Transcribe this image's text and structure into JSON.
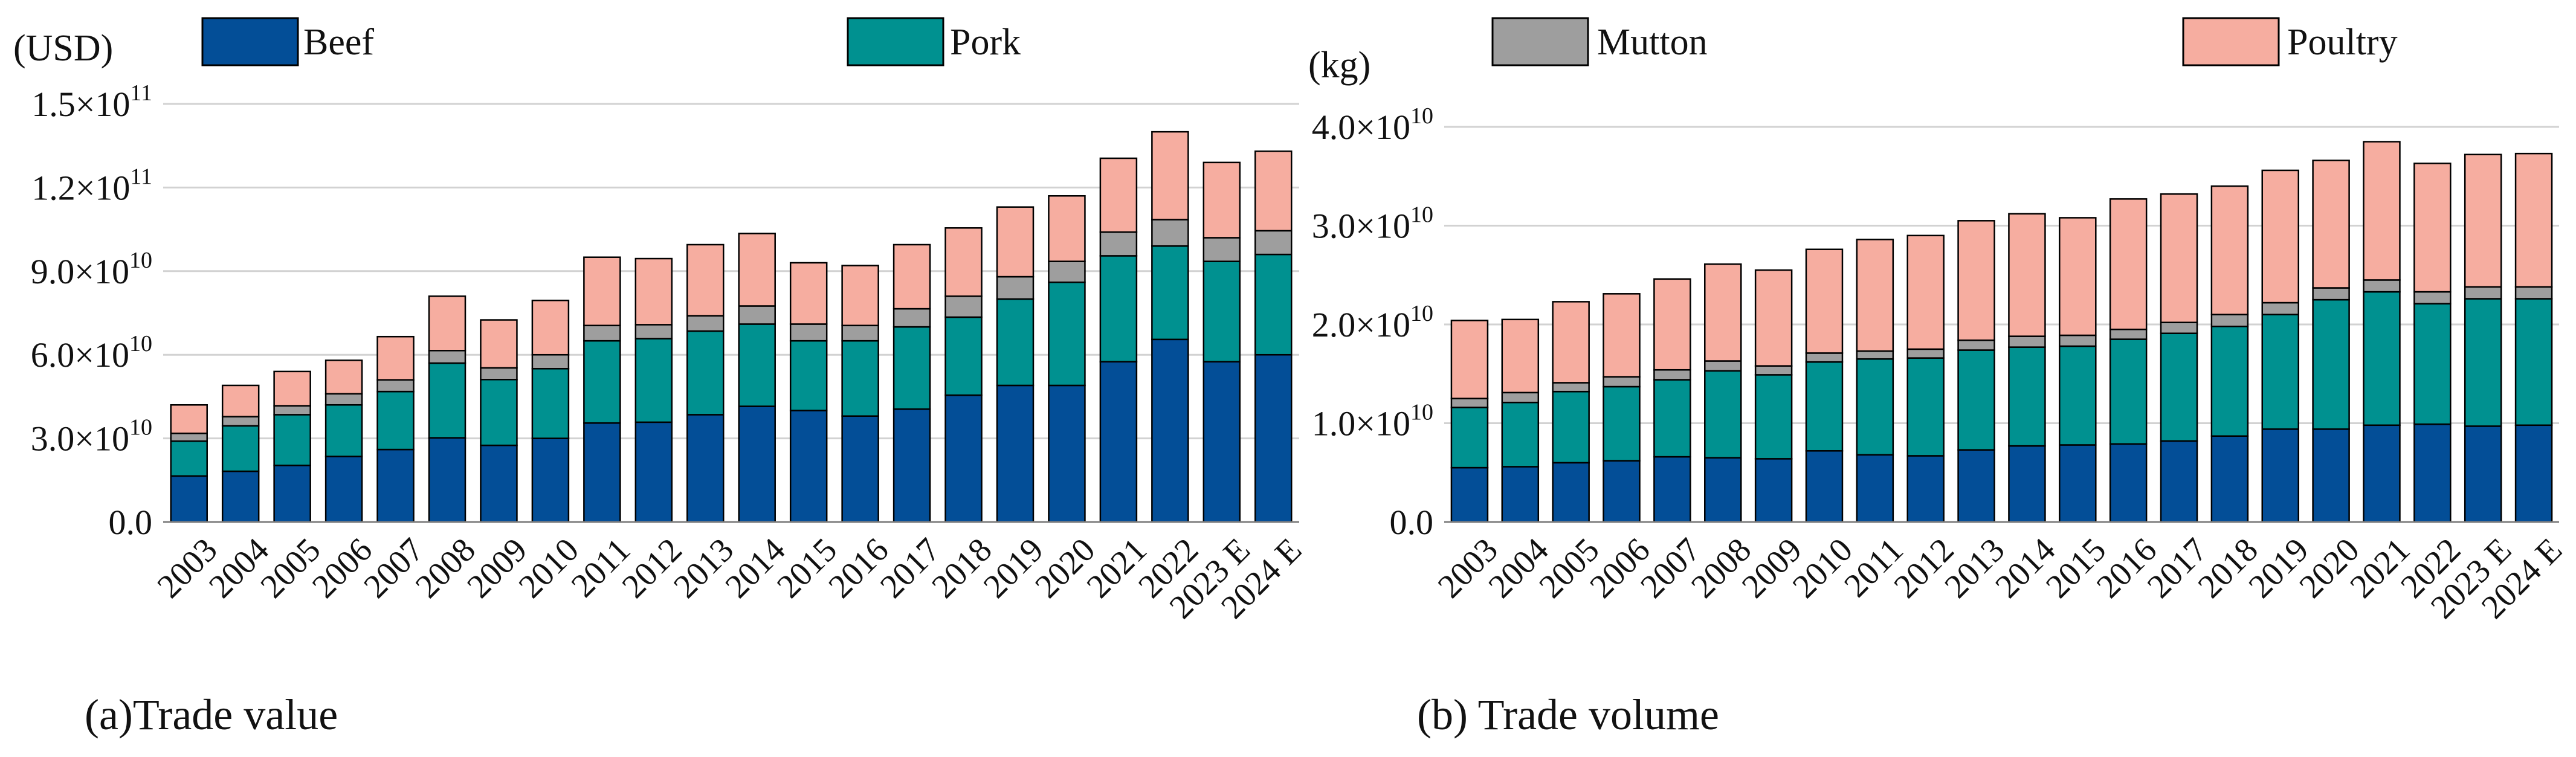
{
  "colors": {
    "beef": "#034e97",
    "pork": "#009190",
    "mutton": "#9e9e9e",
    "poultry": "#f6ada0",
    "grid": "#d2d2d2",
    "axis": "#7f7f7f",
    "text": "#111111"
  },
  "chart_data": [
    {
      "type": "bar",
      "stacked": true,
      "title": "(a)Trade value",
      "ylabel": "(USD)",
      "ylim": [
        0,
        150000000000
      ],
      "yticks": [
        {
          "label": "0.0"
        },
        {
          "label": "3.0×10",
          "exp": "10"
        },
        {
          "label": "6.0×10",
          "exp": "10"
        },
        {
          "label": "9.0×10",
          "exp": "10"
        },
        {
          "label": "1.2×10",
          "exp": "11"
        },
        {
          "label": "1.5×10",
          "exp": "11"
        }
      ],
      "grid": true,
      "legend": [
        "Beef",
        "Pork"
      ],
      "categories": [
        "2003",
        "2004",
        "2005",
        "2006",
        "2007",
        "2008",
        "2009",
        "2010",
        "2011",
        "2012",
        "2013",
        "2014",
        "2015",
        "2016",
        "2017",
        "2018",
        "2019",
        "2020",
        "2021",
        "2022",
        "2023 E",
        "2024 E"
      ],
      "series": [
        {
          "name": "Beef",
          "key": "beef",
          "values": [
            16500000000,
            18200000000,
            20300000000,
            23500000000,
            26000000000,
            30200000000,
            27500000000,
            30000000000,
            35500000000,
            35800000000,
            38500000000,
            41500000000,
            40000000000,
            38000000000,
            40500000000,
            45500000000,
            49000000000,
            49000000000,
            57500000000,
            65500000000,
            57500000000,
            60000000000
          ]
        },
        {
          "name": "Pork",
          "key": "pork",
          "values": [
            12500000000,
            16300000000,
            18200000000,
            18500000000,
            20800000000,
            26800000000,
            23600000000,
            25000000000,
            29500000000,
            30000000000,
            30000000000,
            29500000000,
            25000000000,
            27000000000,
            29500000000,
            28000000000,
            31000000000,
            37000000000,
            38000000000,
            33500000000,
            36000000000,
            36000000000
          ]
        },
        {
          "name": "Mutton",
          "key": "mutton",
          "values": [
            2800000000,
            3300000000,
            3200000000,
            4000000000,
            4200000000,
            4500000000,
            4200000000,
            5000000000,
            5500000000,
            5000000000,
            5500000000,
            6500000000,
            6000000000,
            5500000000,
            6500000000,
            7500000000,
            8000000000,
            7500000000,
            8500000000,
            9500000000,
            8500000000,
            8500000000
          ]
        },
        {
          "name": "Poultry",
          "key": "poultry",
          "values": [
            10200000000,
            11200000000,
            12300000000,
            12000000000,
            15500000000,
            19500000000,
            17200000000,
            19500000000,
            24500000000,
            23700000000,
            25500000000,
            26000000000,
            22000000000,
            21500000000,
            23000000000,
            24500000000,
            25000000000,
            23500000000,
            26500000000,
            31500000000,
            27000000000,
            28500000000
          ]
        }
      ]
    },
    {
      "type": "bar",
      "stacked": true,
      "title": "(b) Trade volume",
      "ylabel": "(kg)",
      "ylim": [
        0,
        40000000000
      ],
      "yticks": [
        {
          "label": "0.0"
        },
        {
          "label": "1.0×10",
          "exp": "10"
        },
        {
          "label": "2.0×10",
          "exp": "10"
        },
        {
          "label": "3.0×10",
          "exp": "10"
        },
        {
          "label": "4.0×10",
          "exp": "10"
        }
      ],
      "grid": true,
      "legend": [
        "Mutton",
        "Poultry"
      ],
      "categories": [
        "2003",
        "2004",
        "2005",
        "2006",
        "2007",
        "2008",
        "2009",
        "2010",
        "2011",
        "2012",
        "2013",
        "2014",
        "2015",
        "2016",
        "2017",
        "2018",
        "2019",
        "2020",
        "2021",
        "2022",
        "2023 E",
        "2024 E"
      ],
      "series": [
        {
          "name": "Beef",
          "key": "beef",
          "values": [
            5500000000,
            5600000000,
            6000000000,
            6200000000,
            6600000000,
            6500000000,
            6400000000,
            7200000000,
            6800000000,
            6700000000,
            7300000000,
            7700000000,
            7800000000,
            7900000000,
            8200000000,
            8700000000,
            9400000000,
            9400000000,
            9800000000,
            9900000000,
            9700000000,
            9800000000
          ]
        },
        {
          "name": "Pork",
          "key": "pork",
          "values": [
            6100000000,
            6500000000,
            7200000000,
            7500000000,
            7800000000,
            8800000000,
            8500000000,
            9000000000,
            9700000000,
            9900000000,
            10100000000,
            10000000000,
            10000000000,
            10600000000,
            10900000000,
            11100000000,
            11600000000,
            13100000000,
            13500000000,
            12200000000,
            12900000000,
            12800000000
          ]
        },
        {
          "name": "Mutton",
          "key": "mutton",
          "values": [
            900000000,
            1000000000,
            900000000,
            1000000000,
            1000000000,
            1000000000,
            900000000,
            900000000,
            800000000,
            900000000,
            1000000000,
            1100000000,
            1100000000,
            1000000000,
            1100000000,
            1200000000,
            1200000000,
            1200000000,
            1200000000,
            1200000000,
            1200000000,
            1200000000
          ]
        },
        {
          "name": "Poultry",
          "key": "poultry",
          "values": [
            7900000000,
            7400000000,
            8200000000,
            8400000000,
            9200000000,
            9800000000,
            9700000000,
            10500000000,
            11300000000,
            11500000000,
            12100000000,
            12400000000,
            11900000000,
            13200000000,
            13000000000,
            13000000000,
            13400000000,
            12900000000,
            14000000000,
            13000000000,
            13400000000,
            13500000000
          ]
        }
      ]
    }
  ]
}
